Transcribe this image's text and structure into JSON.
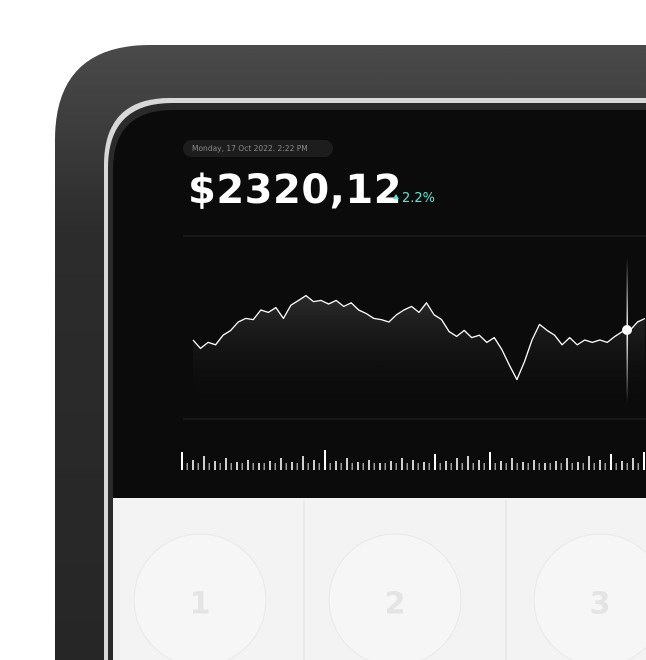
{
  "header": {
    "timestamp": "Monday, 17 Oct 2022. 2:22 PM",
    "price": "$2320,12",
    "change": "2.2%"
  },
  "chart_data": {
    "type": "line",
    "color": "#ffffff",
    "ylim": [
      0,
      100
    ],
    "values": [
      50,
      43,
      48,
      46,
      54,
      58,
      65,
      68,
      67,
      75,
      73,
      77,
      68,
      79,
      83,
      87,
      82,
      83,
      80,
      83,
      78,
      81,
      75,
      72,
      68,
      67,
      65,
      71,
      75,
      78,
      73,
      81,
      71,
      67,
      57,
      53,
      58,
      52,
      54,
      48,
      52,
      42,
      29,
      17,
      32,
      50,
      63,
      58,
      54,
      46,
      52,
      46,
      50,
      48,
      50,
      48,
      53,
      57,
      58,
      65,
      68
    ]
  },
  "keypad": {
    "keys": [
      "1",
      "2",
      "3"
    ]
  }
}
